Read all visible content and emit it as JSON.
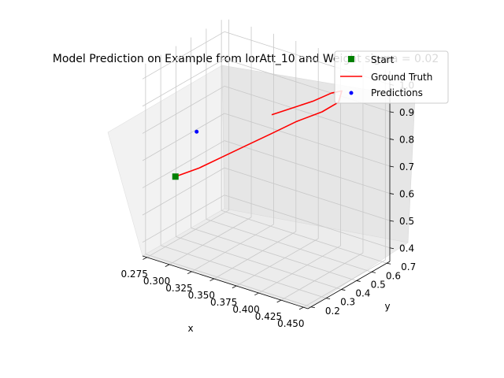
{
  "chart_data": {
    "type": "line3d",
    "title": "Model Prediction on Example from lorAtt_10 and Weight sigma = 0.02",
    "xlabel": "x",
    "ylabel": "y",
    "zlabel": "",
    "x_ticks": [
      "0.275",
      "0.300",
      "0.325",
      "0.350",
      "0.375",
      "0.400",
      "0.425",
      "0.450"
    ],
    "y_ticks": [
      "0.2",
      "0.3",
      "0.4",
      "0.5",
      "0.6",
      "0.7"
    ],
    "z_ticks": [
      "0.4",
      "0.5",
      "0.6",
      "0.7",
      "0.8",
      "0.9",
      "1.0"
    ],
    "xlim": [
      0.27,
      0.455
    ],
    "ylim": [
      0.18,
      0.72
    ],
    "zlim": [
      0.35,
      1.05
    ],
    "grid": true,
    "legend_position": "top-right",
    "series": [
      {
        "name": "Start",
        "kind": "marker",
        "marker": "square",
        "color": "#008000",
        "points": [
          [
            0.3,
            0.22,
            0.66
          ]
        ]
      },
      {
        "name": "Ground Truth",
        "kind": "line",
        "color": "#ff0000",
        "points": [
          [
            0.3,
            0.22,
            0.66
          ],
          [
            0.32,
            0.26,
            0.7
          ],
          [
            0.34,
            0.3,
            0.75
          ],
          [
            0.36,
            0.34,
            0.8
          ],
          [
            0.38,
            0.38,
            0.85
          ],
          [
            0.4,
            0.43,
            0.9
          ],
          [
            0.42,
            0.48,
            0.94
          ],
          [
            0.43,
            0.53,
            0.97
          ],
          [
            0.425,
            0.58,
            0.99
          ],
          [
            0.41,
            0.6,
            0.96
          ],
          [
            0.39,
            0.6,
            0.91
          ],
          [
            0.37,
            0.58,
            0.87
          ],
          [
            0.35,
            0.56,
            0.83
          ]
        ]
      },
      {
        "name": "Predictions",
        "kind": "marker",
        "marker": "dot",
        "color": "#0000ff",
        "points": [
          [
            0.3,
            0.36,
            0.78
          ]
        ]
      }
    ]
  }
}
